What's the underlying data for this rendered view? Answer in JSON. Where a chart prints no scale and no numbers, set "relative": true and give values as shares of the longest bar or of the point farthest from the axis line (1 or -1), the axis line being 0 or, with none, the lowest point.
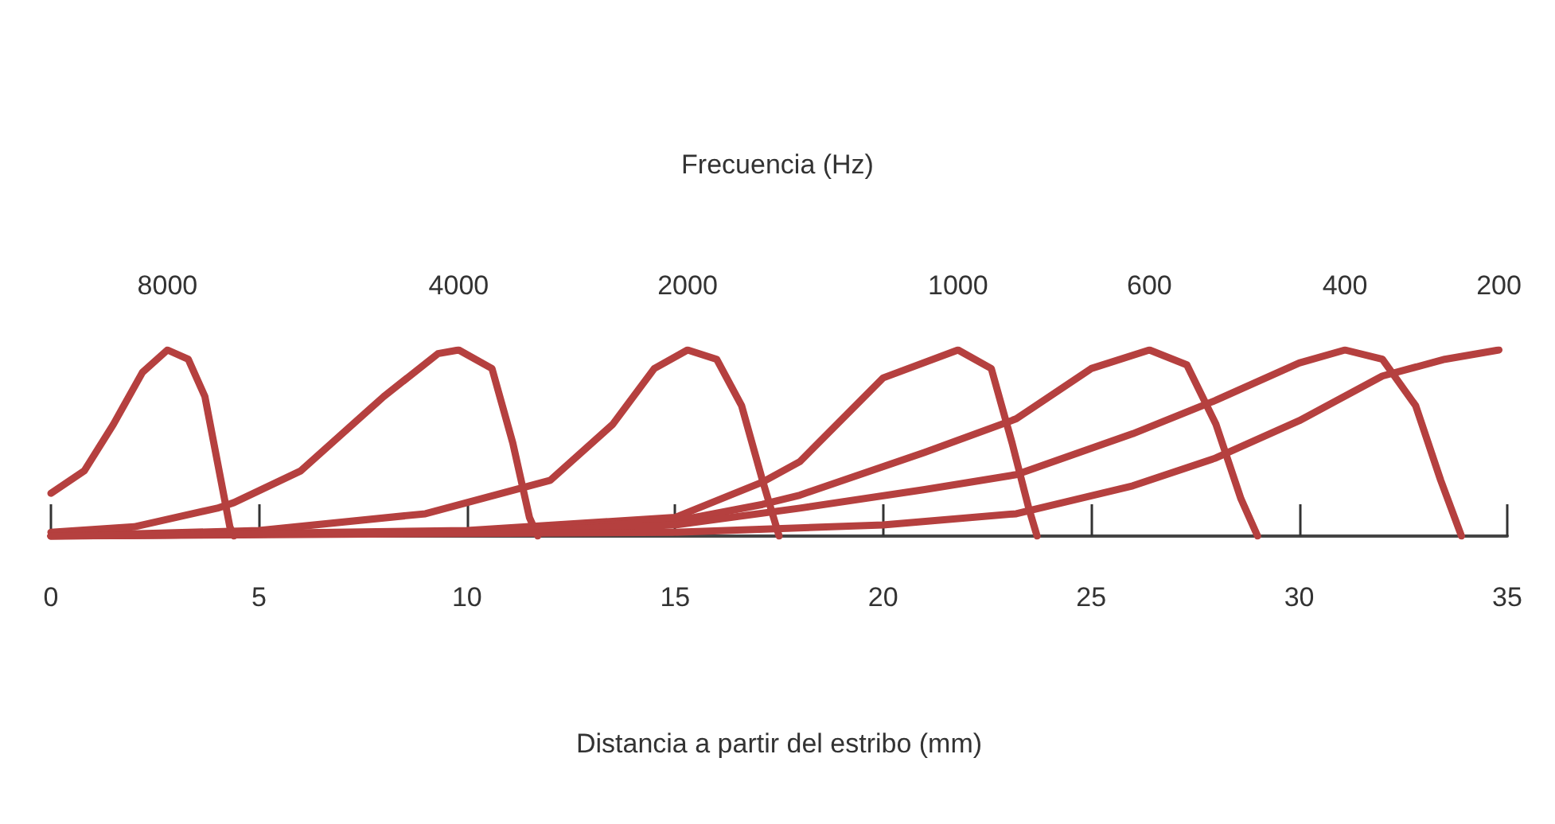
{
  "chart_data": {
    "type": "line",
    "title": "Frecuencia (Hz)",
    "xlabel": "Distancia a partir del estribo (mm)",
    "relative": true,
    "xlim": [
      0,
      35
    ],
    "xticks": [
      0,
      5,
      10,
      15,
      20,
      25,
      30,
      35
    ],
    "marker": "none",
    "line_style": "solid",
    "legend": false,
    "grid": false,
    "series": [
      {
        "name": "8000",
        "color": "#b5403f",
        "x": [
          0,
          0.8,
          1.5,
          2.2,
          2.8,
          3.3,
          3.7,
          4.0,
          4.3,
          4.4
        ],
        "values": [
          0.23,
          0.35,
          0.6,
          0.88,
          1,
          0.95,
          0.75,
          0.4,
          0.05,
          0
        ]
      },
      {
        "name": "4000",
        "color": "#b5403f",
        "x": [
          0,
          2,
          4,
          4.4,
          6,
          8,
          9.3,
          9.8,
          10.6,
          11.1,
          11.5,
          11.7
        ],
        "values": [
          0.02,
          0.05,
          0.15,
          0.18,
          0.35,
          0.75,
          0.98,
          1,
          0.9,
          0.5,
          0.1,
          0
        ]
      },
      {
        "name": "2000",
        "color": "#b5403f",
        "x": [
          0,
          5,
          9,
          12,
          13.5,
          14.5,
          15.3,
          16,
          16.6,
          17.1,
          17.5
        ],
        "values": [
          0,
          0.03,
          0.12,
          0.3,
          0.6,
          0.9,
          1,
          0.95,
          0.7,
          0.3,
          0
        ]
      },
      {
        "name": "1000",
        "color": "#b5403f",
        "x": [
          0,
          10,
          15,
          17.1,
          18,
          20,
          21.8,
          22.6,
          23.1,
          23.5,
          23.7
        ],
        "values": [
          0,
          0.03,
          0.1,
          0.29,
          0.4,
          0.85,
          1,
          0.9,
          0.5,
          0.15,
          0
        ]
      },
      {
        "name": "600",
        "color": "#b5403f",
        "x": [
          0,
          10,
          15,
          17.1,
          18,
          21,
          23.2,
          25,
          26.4,
          27.3,
          28,
          28.6,
          29
        ],
        "values": [
          0,
          0.02,
          0.08,
          0.17,
          0.22,
          0.45,
          0.63,
          0.9,
          1,
          0.92,
          0.6,
          0.2,
          0
        ]
      },
      {
        "name": "400",
        "color": "#b5403f",
        "x": [
          0,
          10,
          15,
          18,
          21,
          23.2,
          26,
          28,
          30,
          31.1,
          32,
          32.8,
          33.4,
          33.9
        ],
        "values": [
          0,
          0.02,
          0.06,
          0.15,
          0.25,
          0.33,
          0.55,
          0.73,
          0.93,
          1,
          0.95,
          0.7,
          0.3,
          0
        ]
      },
      {
        "name": "200",
        "color": "#b5403f",
        "x": [
          0,
          15,
          20,
          23.2,
          26,
          28,
          30,
          32,
          33.5,
          34.8
        ],
        "values": [
          0,
          0.02,
          0.06,
          0.12,
          0.27,
          0.42,
          0.62,
          0.86,
          0.95,
          1
        ]
      }
    ]
  }
}
